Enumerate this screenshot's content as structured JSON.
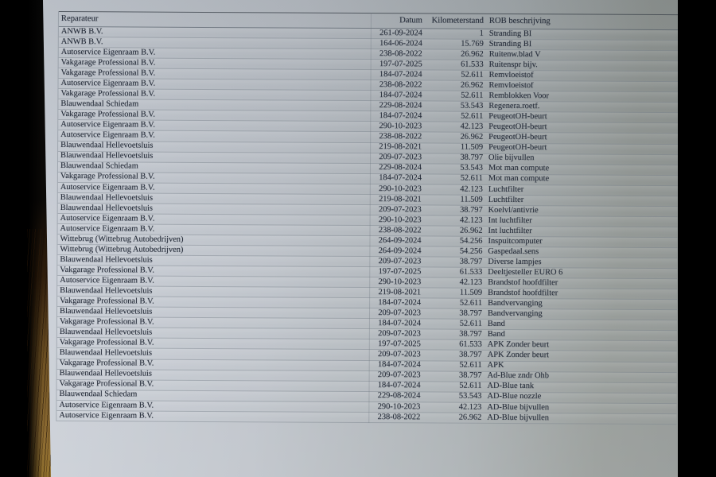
{
  "colors": {
    "paper_light": "#ccd1d9",
    "paper_dark": "#8d9290",
    "ink": "#272e3b",
    "wood_brown": "#8d6c33",
    "background_black": "#000000"
  },
  "table": {
    "columns": [
      "Reparateur",
      "Datum",
      "Kilometerstand",
      "ROB beschrijving"
    ],
    "rows": [
      {
        "reparateur": "ANWB B.V.",
        "datum": "261-09-2024",
        "kilometerstand": "1",
        "rob": "Stranding BI"
      },
      {
        "reparateur": "ANWB B.V.",
        "datum": "164-06-2024",
        "kilometerstand": "15.769",
        "rob": "Stranding BI"
      },
      {
        "reparateur": "Autoservice Eigenraam B.V.",
        "datum": "238-08-2022",
        "kilometerstand": "26.962",
        "rob": "Ruitenw.blad V"
      },
      {
        "reparateur": "Vakgarage Professional B.V.",
        "datum": "197-07-2025",
        "kilometerstand": "61.533",
        "rob": "Ruitenspr bijv."
      },
      {
        "reparateur": "Vakgarage Professional B.V.",
        "datum": "184-07-2024",
        "kilometerstand": "52.611",
        "rob": "Remvloeistof"
      },
      {
        "reparateur": "Autoservice Eigenraam B.V.",
        "datum": "238-08-2022",
        "kilometerstand": "26.962",
        "rob": "Remvloeistof"
      },
      {
        "reparateur": "Vakgarage Professional B.V.",
        "datum": "184-07-2024",
        "kilometerstand": "52.611",
        "rob": "Remblokken Voor"
      },
      {
        "reparateur": "Blauwendaal Schiedam",
        "datum": "229-08-2024",
        "kilometerstand": "53.543",
        "rob": "Regenera.roetf."
      },
      {
        "reparateur": "Vakgarage Professional B.V.",
        "datum": "184-07-2024",
        "kilometerstand": "52.611",
        "rob": "PeugeotOH-beurt"
      },
      {
        "reparateur": "Autoservice Eigenraam B.V.",
        "datum": "290-10-2023",
        "kilometerstand": "42.123",
        "rob": "PeugeotOH-beurt"
      },
      {
        "reparateur": "Autoservice Eigenraam B.V.",
        "datum": "238-08-2022",
        "kilometerstand": "26.962",
        "rob": "PeugeotOH-beurt"
      },
      {
        "reparateur": "Blauwendaal Hellevoetsluis",
        "datum": "219-08-2021",
        "kilometerstand": "11.509",
        "rob": "PeugeotOH-beurt"
      },
      {
        "reparateur": "Blauwendaal Hellevoetsluis",
        "datum": "209-07-2023",
        "kilometerstand": "38.797",
        "rob": "Olie bijvullen"
      },
      {
        "reparateur": "Blauwendaal Schiedam",
        "datum": "229-08-2024",
        "kilometerstand": "53.543",
        "rob": "Mot man compute"
      },
      {
        "reparateur": "Vakgarage Professional B.V.",
        "datum": "184-07-2024",
        "kilometerstand": "52.611",
        "rob": "Mot man compute"
      },
      {
        "reparateur": "Autoservice Eigenraam B.V.",
        "datum": "290-10-2023",
        "kilometerstand": "42.123",
        "rob": "Luchtfilter"
      },
      {
        "reparateur": "Blauwendaal Hellevoetsluis",
        "datum": "219-08-2021",
        "kilometerstand": "11.509",
        "rob": "Luchtfilter"
      },
      {
        "reparateur": "Blauwendaal Hellevoetsluis",
        "datum": "209-07-2023",
        "kilometerstand": "38.797",
        "rob": "Koelvl/antivrie"
      },
      {
        "reparateur": "Autoservice Eigenraam B.V.",
        "datum": "290-10-2023",
        "kilometerstand": "42.123",
        "rob": "Int luchtfilter"
      },
      {
        "reparateur": "Autoservice Eigenraam B.V.",
        "datum": "238-08-2022",
        "kilometerstand": "26.962",
        "rob": "Int luchtfilter"
      },
      {
        "reparateur": "Wittebrug (Wittebrug Autobedrijven)",
        "datum": "264-09-2024",
        "kilometerstand": "54.256",
        "rob": "Inspuitcomputer"
      },
      {
        "reparateur": "Wittebrug (Wittebrug Autobedrijven)",
        "datum": "264-09-2024",
        "kilometerstand": "54.256",
        "rob": "Gaspedaal.sens"
      },
      {
        "reparateur": "Blauwendaal Hellevoetsluis",
        "datum": "209-07-2023",
        "kilometerstand": "38.797",
        "rob": "Diverse lampjes"
      },
      {
        "reparateur": "Vakgarage Professional B.V.",
        "datum": "197-07-2025",
        "kilometerstand": "61.533",
        "rob": "Deeltjesteller EURO 6"
      },
      {
        "reparateur": "Autoservice Eigenraam B.V.",
        "datum": "290-10-2023",
        "kilometerstand": "42.123",
        "rob": "Brandstof hoofdfilter"
      },
      {
        "reparateur": "Blauwendaal Hellevoetsluis",
        "datum": "219-08-2021",
        "kilometerstand": "11.509",
        "rob": "Brandstof hoofdfilter"
      },
      {
        "reparateur": "Vakgarage Professional B.V.",
        "datum": "184-07-2024",
        "kilometerstand": "52.611",
        "rob": "Bandvervanging"
      },
      {
        "reparateur": "Blauwendaal Hellevoetsluis",
        "datum": "209-07-2023",
        "kilometerstand": "38.797",
        "rob": "Bandvervanging"
      },
      {
        "reparateur": "Vakgarage Professional B.V.",
        "datum": "184-07-2024",
        "kilometerstand": "52.611",
        "rob": "Band"
      },
      {
        "reparateur": "Blauwendaal Hellevoetsluis",
        "datum": "209-07-2023",
        "kilometerstand": "38.797",
        "rob": "Band"
      },
      {
        "reparateur": "Vakgarage Professional B.V.",
        "datum": "197-07-2025",
        "kilometerstand": "61.533",
        "rob": "APK Zonder beurt"
      },
      {
        "reparateur": "Blauwendaal Hellevoetsluis",
        "datum": "209-07-2023",
        "kilometerstand": "38.797",
        "rob": "APK Zonder beurt"
      },
      {
        "reparateur": "Vakgarage Professional B.V.",
        "datum": "184-07-2024",
        "kilometerstand": "52.611",
        "rob": "APK"
      },
      {
        "reparateur": "Blauwendaal Hellevoetsluis",
        "datum": "209-07-2023",
        "kilometerstand": "38.797",
        "rob": "Ad-Blue zndr Ohb"
      },
      {
        "reparateur": "Vakgarage Professional B.V.",
        "datum": "184-07-2024",
        "kilometerstand": "52.611",
        "rob": "AD-Blue tank"
      },
      {
        "reparateur": "Blauwendaal Schiedam",
        "datum": "229-08-2024",
        "kilometerstand": "53.543",
        "rob": "AD-Blue nozzle"
      },
      {
        "reparateur": "Autoservice Eigenraam B.V.",
        "datum": "290-10-2023",
        "kilometerstand": "42.123",
        "rob": "AD-Blue bijvullen"
      },
      {
        "reparateur": "Autoservice Eigenraam B.V.",
        "datum": "238-08-2022",
        "kilometerstand": "26.962",
        "rob": "AD-Blue bijvullen"
      }
    ]
  }
}
